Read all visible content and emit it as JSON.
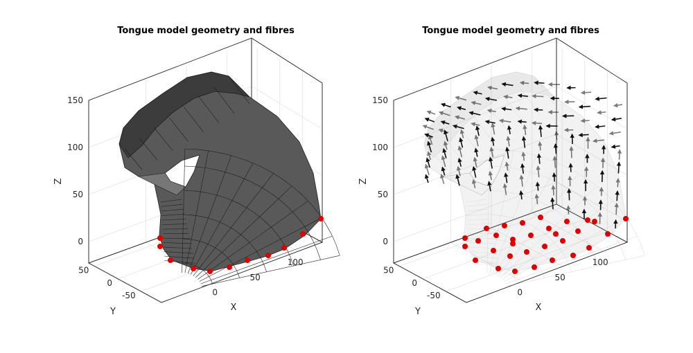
{
  "chart_data": [
    {
      "type": "3d-surface",
      "title": "Tongue model geometry and fibres",
      "xlabel": "X",
      "ylabel": "Y",
      "zlabel": "Z",
      "xticks": [
        "0",
        "50",
        "100"
      ],
      "yticks": [
        "50",
        "0",
        "-50"
      ],
      "zticks": [
        "150",
        "100",
        "50",
        "0"
      ],
      "xlim": [
        -25,
        150
      ],
      "ylim": [
        -60,
        60
      ],
      "zlim": [
        -10,
        160
      ],
      "grid": true,
      "series": [
        {
          "kind": "surface mesh",
          "color": "#555555",
          "opacity": 1.0
        },
        {
          "kind": "boundary nodes",
          "color": "#e00000"
        }
      ]
    },
    {
      "type": "3d-surface-vectors",
      "title": "Tongue model geometry and fibres",
      "xlabel": "X",
      "ylabel": "Y",
      "zlabel": "Z",
      "xticks": [
        "0",
        "50",
        "100"
      ],
      "yticks": [
        "50",
        "0",
        "-50"
      ],
      "zticks": [
        "150",
        "100",
        "50",
        "0"
      ],
      "xlim": [
        -25,
        150
      ],
      "ylim": [
        -60,
        60
      ],
      "zlim": [
        -10,
        160
      ],
      "grid": true,
      "series": [
        {
          "kind": "transparent surface mesh",
          "color": "#9a9a9a",
          "opacity": 0.3
        },
        {
          "kind": "fibre direction arrows",
          "color": "#000000"
        },
        {
          "kind": "boundary nodes",
          "color": "#e00000"
        }
      ]
    }
  ]
}
